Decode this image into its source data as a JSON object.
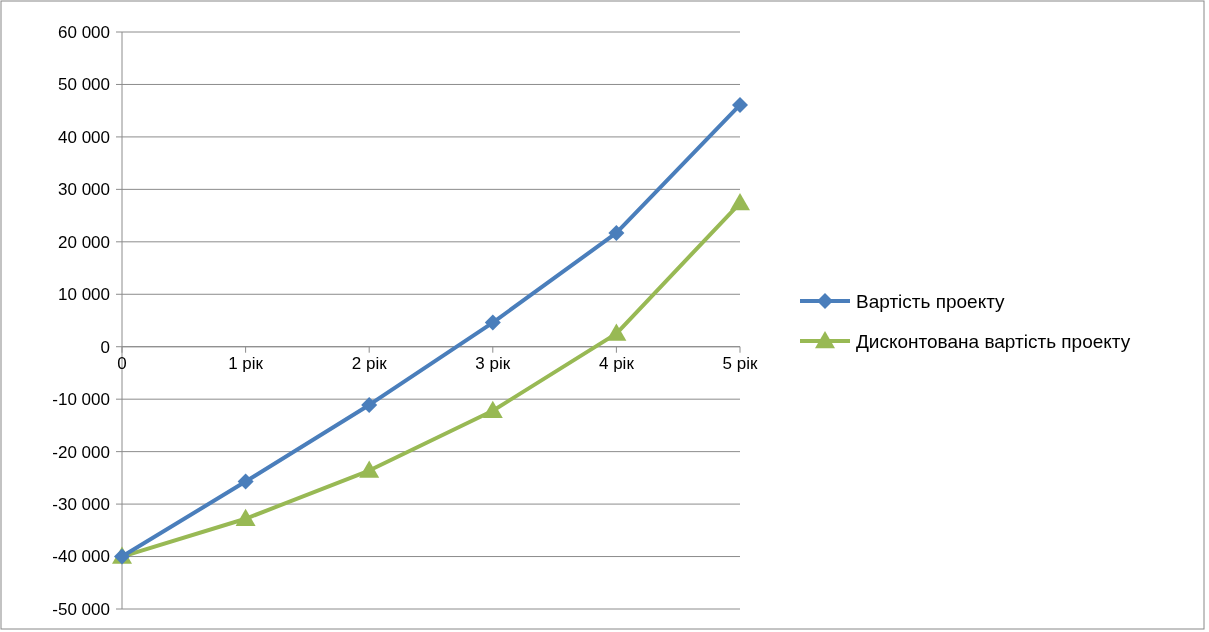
{
  "chart_data": {
    "type": "line",
    "categories": [
      "0",
      "1 рік",
      "2 рік",
      "3 рік",
      "4 рік",
      "5 рік"
    ],
    "series": [
      {
        "name": "Вартість проекту",
        "color": "#4a7ebb",
        "marker": "diamond",
        "values": [
          -40000,
          -25700,
          -11100,
          4600,
          21700,
          46100
        ]
      },
      {
        "name": "Дисконтована вартість проекту",
        "color": "#98b954",
        "marker": "triangle",
        "values": [
          -40000,
          -32800,
          -23600,
          -12200,
          2500,
          27400
        ]
      }
    ],
    "ylim": [
      -50000,
      60000
    ],
    "yticks": [
      {
        "value": -50000,
        "label": "-50 000"
      },
      {
        "value": -40000,
        "label": "-40 000"
      },
      {
        "value": -30000,
        "label": "-30 000"
      },
      {
        "value": -20000,
        "label": "-20 000"
      },
      {
        "value": -10000,
        "label": "-10 000"
      },
      0,
      {
        "value": 10000,
        "label": "10 000"
      },
      {
        "value": 20000,
        "label": "20 000"
      },
      {
        "value": 30000,
        "label": "30 000"
      },
      {
        "value": 40000,
        "label": "40 000"
      },
      {
        "value": 50000,
        "label": "50 000"
      },
      {
        "value": 60000,
        "label": "60 000"
      }
    ],
    "grid": "y",
    "legend": "right",
    "line_style": "solid"
  }
}
